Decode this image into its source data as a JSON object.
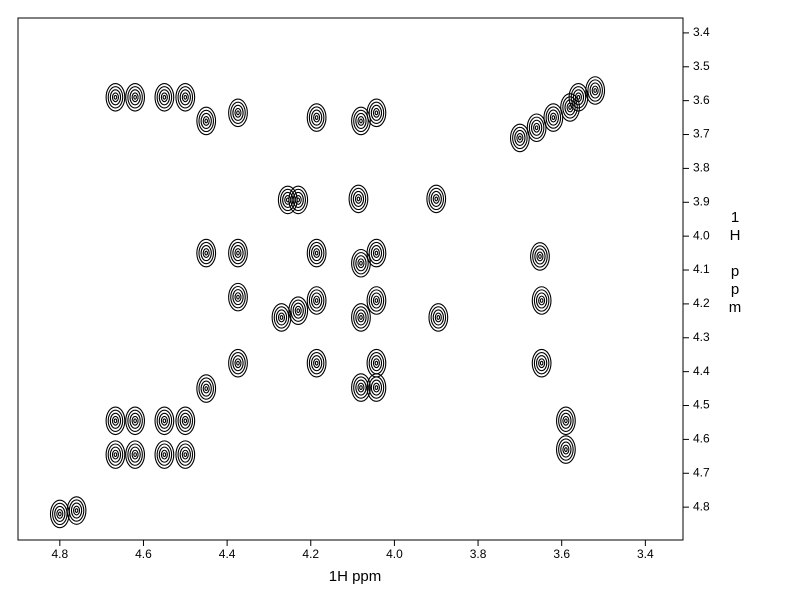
{
  "chart_data": {
    "type": "contour",
    "x_label": "1H ppm",
    "y_label": "1H ppm",
    "x": [
      4.667,
      4.62,
      4.55,
      4.5,
      4.45,
      4.374,
      4.186,
      4.08,
      4.043,
      3.7,
      3.66,
      3.62,
      3.58,
      3.56,
      3.52,
      4.255,
      4.23,
      4.086,
      3.9,
      4.45,
      4.374,
      4.186,
      4.08,
      4.043,
      3.652,
      4.374,
      4.27,
      4.23,
      4.186,
      4.08,
      4.043,
      3.895,
      3.648,
      4.374,
      4.186,
      4.043,
      3.648,
      4.043,
      4.08,
      4.45,
      4.667,
      4.62,
      4.55,
      4.5,
      3.59,
      4.667,
      4.62,
      4.55,
      4.5,
      3.59,
      4.8,
      4.76
    ],
    "y": [
      3.59,
      3.59,
      3.59,
      3.59,
      3.66,
      3.636,
      3.65,
      3.66,
      3.636,
      3.71,
      3.68,
      3.65,
      3.62,
      3.59,
      3.57,
      3.893,
      3.893,
      3.89,
      3.89,
      4.05,
      4.05,
      4.05,
      4.08,
      4.05,
      4.06,
      4.18,
      4.24,
      4.22,
      4.19,
      4.24,
      4.19,
      4.24,
      4.19,
      4.375,
      4.375,
      4.375,
      4.375,
      4.447,
      4.447,
      4.45,
      4.545,
      4.545,
      4.545,
      4.545,
      4.545,
      4.645,
      4.645,
      4.645,
      4.645,
      4.63,
      4.82,
      4.81
    ],
    "color": "#000000",
    "xlim": [
      4.9,
      3.31
    ],
    "ylim": [
      3.356,
      4.897
    ],
    "xticks": [
      4.8,
      4.6,
      4.4,
      4.2,
      {
        "value": 4,
        "label": "4.0"
      },
      3.8,
      3.6,
      3.4
    ],
    "yticks": [
      3.4,
      3.5,
      3.6,
      3.7,
      3.8,
      3.9,
      {
        "value": 4,
        "label": "4.0"
      },
      4.1,
      4.2,
      4.3,
      4.4,
      4.5,
      4.6,
      4.7,
      4.8
    ]
  }
}
